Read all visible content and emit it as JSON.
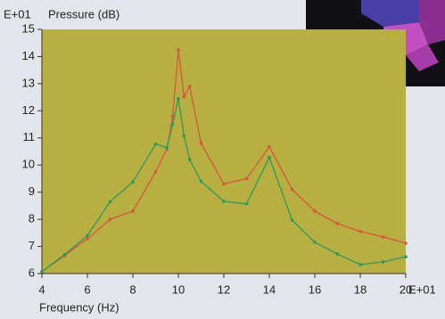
{
  "chart_data": {
    "type": "line",
    "y_exponent": "E+01",
    "ylabel": "Pressure (dB)",
    "x_exponent": "E+01",
    "xlabel": "Frequency (Hz)",
    "x": [
      4,
      5,
      6,
      7,
      8,
      9,
      9.5,
      9.75,
      10,
      10.25,
      10.5,
      11,
      12,
      13,
      14,
      15,
      16,
      17,
      18,
      19,
      20
    ],
    "series": [
      {
        "color": "#d9553c",
        "values": [
          6.07,
          6.66,
          7.28,
          8.0,
          8.3,
          9.75,
          10.6,
          11.8,
          14.24,
          12.52,
          12.9,
          10.8,
          9.3,
          9.5,
          10.67,
          9.1,
          8.3,
          7.84,
          7.55,
          7.35,
          7.12
        ]
      },
      {
        "color": "#2e9a5c",
        "values": [
          6.07,
          6.7,
          7.4,
          8.65,
          9.38,
          10.77,
          10.64,
          11.5,
          12.45,
          11.07,
          10.2,
          9.4,
          8.66,
          8.57,
          10.28,
          7.97,
          7.15,
          6.72,
          6.33,
          6.43,
          6.62
        ]
      }
    ],
    "xlim": [
      4,
      20
    ],
    "xticks": [
      4,
      6,
      8,
      10,
      12,
      14,
      16,
      18,
      20
    ],
    "ylim": [
      6,
      15
    ],
    "yticks": [
      6,
      7,
      8,
      9,
      10,
      11,
      12,
      13,
      14,
      15
    ],
    "plot_color": "#b7af42"
  }
}
